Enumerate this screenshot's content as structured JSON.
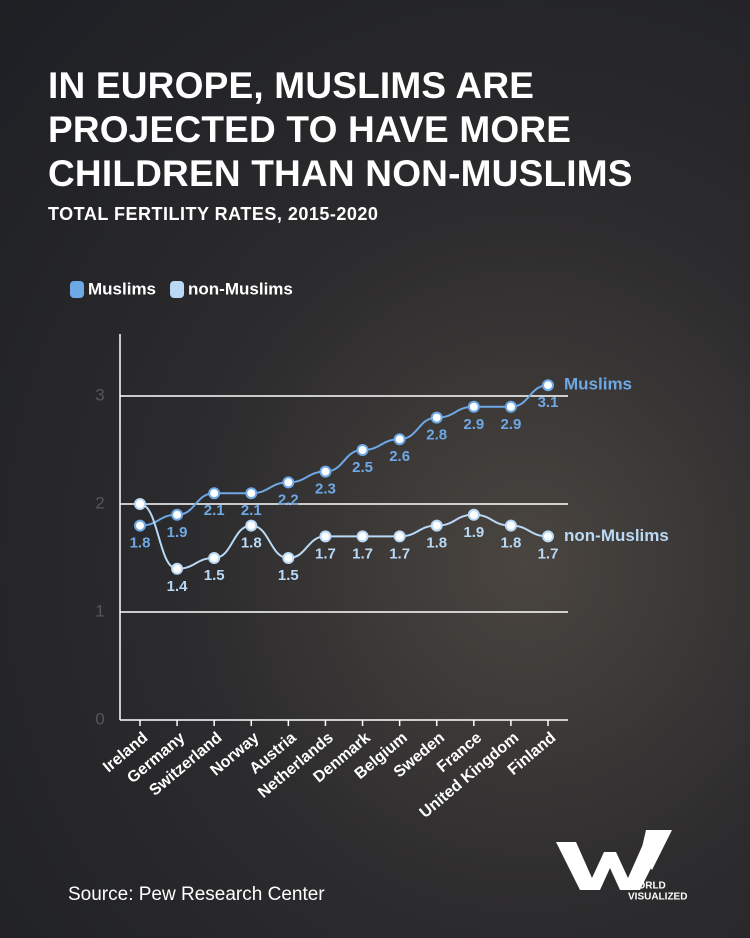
{
  "chart_data": {
    "type": "line",
    "title": "IN EUROPE, MUSLIMS ARE PROJECTED TO HAVE MORE CHILDREN THAN NON-MUSLIMS",
    "subtitle": "TOTAL FERTILITY RATES, 2015-2020",
    "source": "Source: Pew Research Center",
    "categories": [
      "Ireland",
      "Germany",
      "Switzerland",
      "Norway",
      "Austria",
      "Netherlands",
      "Denmark",
      "Belgium",
      "Sweden",
      "France",
      "United Kingdom",
      "Finland"
    ],
    "series": [
      {
        "name": "Muslims",
        "color": "#6fa8e6",
        "values": [
          1.8,
          1.9,
          2.1,
          2.1,
          2.2,
          2.3,
          2.5,
          2.6,
          2.8,
          2.9,
          2.9,
          3.1
        ]
      },
      {
        "name": "non-Muslims",
        "color": "#b9d9f5",
        "values": [
          2.0,
          1.4,
          1.5,
          1.8,
          1.5,
          1.7,
          1.7,
          1.7,
          1.8,
          1.9,
          1.8,
          1.7
        ],
        "value_labels": [
          null,
          "1.4",
          "1.5",
          "1.8",
          "1.5",
          "1.7",
          "1.7",
          "1.7",
          "1.8",
          "1.9",
          "1.8",
          "1.7"
        ]
      }
    ],
    "ylim": [
      0,
      3.5
    ],
    "yticks": [
      0,
      1,
      2,
      3
    ],
    "grid": true,
    "legend": "top-left",
    "logo": [
      "WORLD",
      "VISUALIZED"
    ]
  }
}
